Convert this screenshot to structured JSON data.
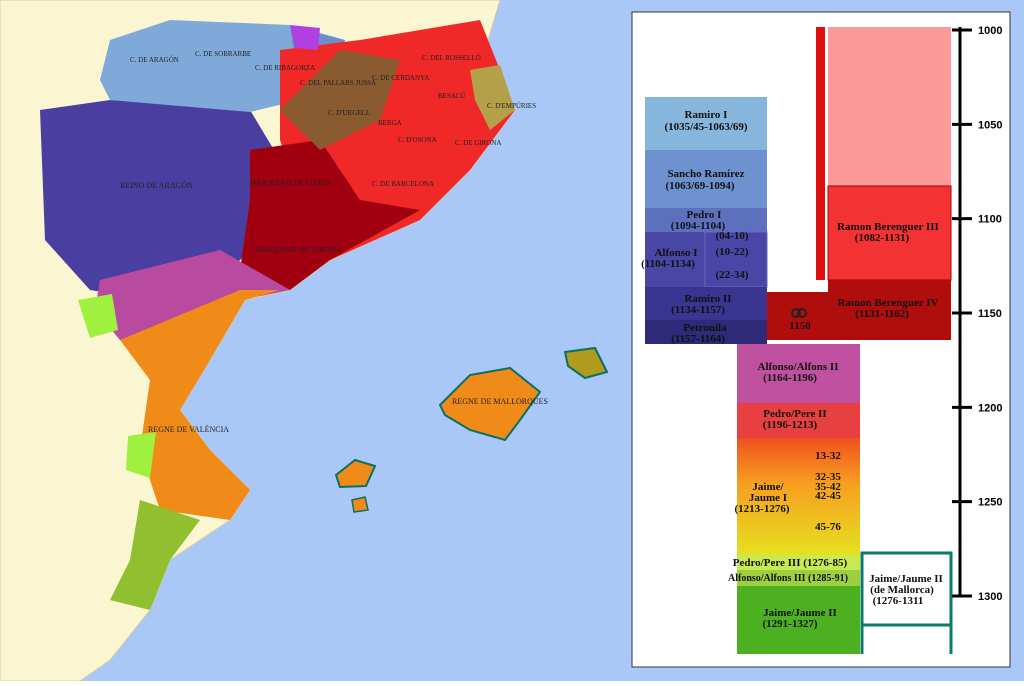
{
  "map": {
    "labels": {
      "aragon_county": "C. DE ARAGÓN",
      "sobrarbe": "C. DE SOBRARBE",
      "ribagorza": "C. DE RIBAGORZA",
      "pallars": "C. DEL PALLARS JUSSÀ",
      "urgell": "C. D'URGELL",
      "cerdanya": "C. DE CERDANYA",
      "rossello": "C. DEL ROSSELLÓ",
      "besalu": "BESALÚ",
      "empories": "C. D'EMPÚRIES",
      "berga": "BERGA",
      "osona": "C. D'OSONA",
      "girona": "C. DE GIRONA",
      "barcelona": "C. DE BARCELONA",
      "lleida": "MARQUESAT DE LLEIDA",
      "tortosa": "MARQUESAT DE TORTOSA",
      "aragon_kingdom": "REINO DE ARAGÓN",
      "valencia": "REGNE DE VALÈNCIA",
      "mallorca": "REGNE DE MALLORQUES"
    }
  },
  "timeline": {
    "ticks": [
      1000,
      1050,
      1100,
      1150,
      1200,
      1250,
      1300
    ],
    "aragon": [
      {
        "name": "Ramiro I",
        "dates": "(1035/45-1063/69)"
      },
      {
        "name": "Sancho Ramírez",
        "dates": "(1063/69-1094)"
      },
      {
        "name": "Pedro I",
        "dates": "(1094-1104)"
      },
      {
        "name": "Alfonso I",
        "dates": "(1104-1134)"
      },
      {
        "name": "Ramiro II",
        "dates": "(1134-1157)"
      },
      {
        "name": "Petronila",
        "dates": "(1157-1164)"
      }
    ],
    "alfonso_periods": [
      "(04-10)",
      "(10-22)",
      "(22-34)"
    ],
    "barcelona": [
      {
        "name": "Ramon Berenguer III",
        "dates": "(1082-1131)"
      },
      {
        "name": "Ramon Berenguer IV",
        "dates": "(1131-1162)"
      }
    ],
    "union": "1150",
    "crown": [
      {
        "name": "Alfonso/Alfons II",
        "dates": "(1164-1196)"
      },
      {
        "name": "Pedro/Pere II",
        "dates": "(1196-1213)"
      },
      {
        "name": "Jaime/",
        "name2": "Jaume I",
        "dates": "(1213-1276)"
      },
      {
        "name": "Pedro/Pere III (1276-85)"
      },
      {
        "name": "Alfonso/Alfons III (1285-91)"
      },
      {
        "name": "Jaime/Jaume II",
        "dates": "(1291-1327)"
      }
    ],
    "jaume_periods": [
      "13-32",
      "32-35",
      "35-42",
      "42-45",
      "45-76"
    ],
    "mallorca": {
      "name": "Jaime/Jaume II",
      "sub": "(de Mallorca)",
      "dates": "(1276-1311"
    }
  }
}
